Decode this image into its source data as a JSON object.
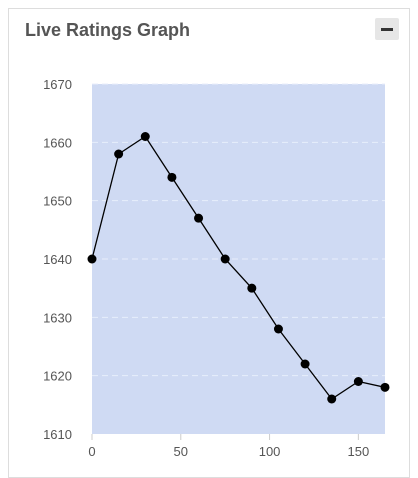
{
  "panel": {
    "title": "Live Ratings Graph",
    "collapse_icon": "minus-icon"
  },
  "colors": {
    "plot_background": "#cfdaf3",
    "line": "#000000",
    "point": "#000000",
    "gridline": "#e8eefb"
  },
  "chart_data": {
    "type": "line",
    "title": "",
    "xlabel": "",
    "ylabel": "",
    "xlim": [
      0,
      165
    ],
    "ylim": [
      1610,
      1670
    ],
    "x_ticks": [
      "0",
      "50",
      "100",
      "150"
    ],
    "y_ticks": [
      "1610",
      "1620",
      "1630",
      "1640",
      "1650",
      "1660",
      "1670"
    ],
    "grid": true,
    "series": [
      {
        "x": [
          0,
          15,
          30,
          45,
          60,
          75,
          90,
          105,
          120,
          135,
          150,
          165
        ],
        "y": [
          1640,
          1658,
          1661,
          1654,
          1647,
          1640,
          1635,
          1628,
          1622,
          1616,
          1619,
          1618
        ]
      }
    ]
  }
}
